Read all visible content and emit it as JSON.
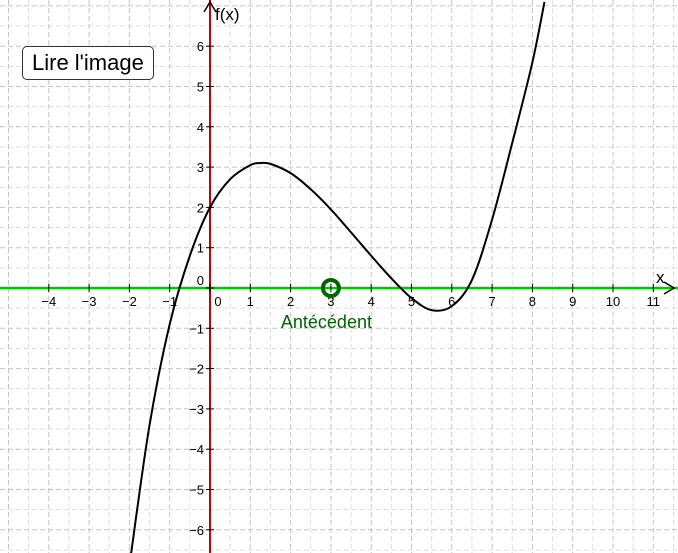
{
  "button": {
    "label": "Lire l'image"
  },
  "chart_data": {
    "type": "line",
    "x_axis": {
      "label": "x",
      "range": [
        -5.2,
        11.5
      ],
      "ticks": [
        -4,
        -3,
        -2,
        -1,
        0,
        1,
        2,
        3,
        4,
        5,
        6,
        7,
        8,
        9,
        10,
        11
      ]
    },
    "y_axis": {
      "label": "f(x)",
      "range": [
        -6.6,
        7.1
      ],
      "ticks": [
        -6,
        -5,
        -4,
        -3,
        -2,
        -1,
        0,
        1,
        2,
        3,
        4,
        5,
        6
      ]
    },
    "grid": true,
    "curve": {
      "name": "",
      "color": "#000000",
      "points": [
        {
          "x": -1.96,
          "y": -6.6
        },
        {
          "x": -1.5,
          "y": -3.4
        },
        {
          "x": -1.0,
          "y": -0.9
        },
        {
          "x": -0.5,
          "y": 0.8
        },
        {
          "x": 0.0,
          "y": 2.0
        },
        {
          "x": 0.5,
          "y": 2.7
        },
        {
          "x": 1.0,
          "y": 3.05
        },
        {
          "x": 1.25,
          "y": 3.1
        },
        {
          "x": 1.5,
          "y": 3.08
        },
        {
          "x": 2.0,
          "y": 2.85
        },
        {
          "x": 2.5,
          "y": 2.45
        },
        {
          "x": 3.0,
          "y": 1.95
        },
        {
          "x": 3.5,
          "y": 1.38
        },
        {
          "x": 4.0,
          "y": 0.8
        },
        {
          "x": 4.5,
          "y": 0.24
        },
        {
          "x": 5.0,
          "y": -0.25
        },
        {
          "x": 5.5,
          "y": -0.55
        },
        {
          "x": 6.0,
          "y": -0.45
        },
        {
          "x": 6.5,
          "y": 0.2
        },
        {
          "x": 7.0,
          "y": 1.7
        },
        {
          "x": 7.5,
          "y": 3.6
        },
        {
          "x": 8.0,
          "y": 5.6
        },
        {
          "x": 8.3,
          "y": 7.1
        }
      ]
    },
    "line_y0": {
      "color": "#00c800",
      "y": 0
    },
    "x_axis_color": "#00c800",
    "y_axis_color": "#c80000",
    "point": {
      "x": 3,
      "y": 0,
      "label": "Antécédent",
      "color": "#006400"
    }
  }
}
